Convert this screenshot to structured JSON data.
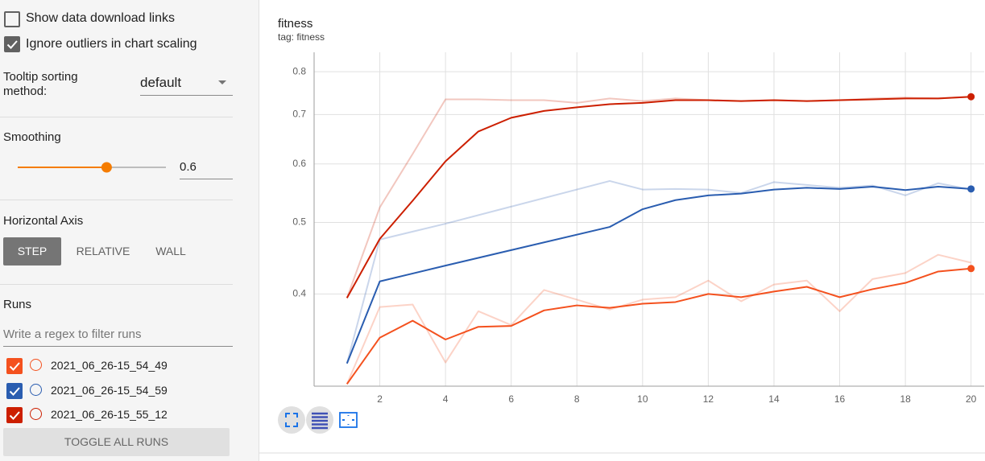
{
  "sidebar": {
    "show_download_links": {
      "label": "Show data download links",
      "checked": false
    },
    "ignore_outliers": {
      "label": "Ignore outliers in chart scaling",
      "checked": true
    },
    "tooltip_sorting": {
      "label": "Tooltip sorting method:",
      "value": "default"
    },
    "smoothing": {
      "label": "Smoothing",
      "value": 0.6,
      "range": [
        0,
        1
      ]
    },
    "horizontal_axis": {
      "label": "Horizontal Axis",
      "options": [
        "STEP",
        "RELATIVE",
        "WALL"
      ],
      "selected": 0
    },
    "runs": {
      "label": "Runs",
      "filter_placeholder": "Write a regex to filter runs",
      "toggle_button": "TOGGLE ALL RUNS"
    }
  },
  "chart_data": {
    "type": "line",
    "title": "fitness",
    "subtitle": "tag: fitness",
    "xlim": [
      0,
      20.4
    ],
    "xticks": [
      2,
      4,
      6,
      8,
      10,
      12,
      14,
      16,
      18,
      20
    ],
    "ylim": [
      0.3,
      0.85
    ],
    "yticks": [
      0.4,
      0.5,
      0.6,
      0.7,
      0.8
    ],
    "yscale": "log",
    "grid": true,
    "raw_opacity": 0.25,
    "series": [
      {
        "name": "2021_06_26-15_54_49",
        "color": "#f4511e",
        "x": [
          1,
          2,
          3,
          4,
          5,
          6,
          7,
          8,
          9,
          10,
          11,
          12,
          13,
          14,
          15,
          16,
          17,
          18,
          19,
          20
        ],
        "values": [
          0.302,
          0.349,
          0.368,
          0.347,
          0.361,
          0.362,
          0.38,
          0.386,
          0.383,
          0.388,
          0.39,
          0.4,
          0.396,
          0.403,
          0.409,
          0.396,
          0.406,
          0.414,
          0.429,
          0.433
        ],
        "raw_values": [
          0.302,
          0.384,
          0.387,
          0.323,
          0.379,
          0.363,
          0.405,
          0.393,
          0.381,
          0.393,
          0.396,
          0.417,
          0.391,
          0.412,
          0.417,
          0.379,
          0.419,
          0.427,
          0.452,
          0.441
        ]
      },
      {
        "name": "2021_06_26-15_54_59",
        "color": "#2a5db0",
        "x": [
          1,
          2,
          4,
          9,
          10,
          11,
          12,
          13,
          14,
          15,
          16,
          17,
          18,
          19,
          20
        ],
        "values": [
          0.322,
          0.416,
          0.437,
          0.493,
          0.521,
          0.536,
          0.544,
          0.547,
          0.554,
          0.557,
          0.555,
          0.559,
          0.553,
          0.559,
          0.555
        ],
        "raw_values": [
          0.322,
          0.474,
          0.498,
          0.569,
          0.554,
          0.555,
          0.554,
          0.548,
          0.567,
          0.562,
          0.557,
          0.561,
          0.544,
          0.565,
          0.554
        ]
      },
      {
        "name": "2021_06_26-15_55_12",
        "color": "#cc1f00",
        "x": [
          1,
          2,
          3,
          4,
          5,
          6,
          7,
          8,
          9,
          10,
          11,
          12,
          13,
          14,
          15,
          16,
          17,
          18,
          19,
          20
        ],
        "values": [
          0.395,
          0.475,
          0.535,
          0.605,
          0.664,
          0.693,
          0.708,
          0.716,
          0.723,
          0.726,
          0.732,
          0.732,
          0.73,
          0.732,
          0.73,
          0.732,
          0.734,
          0.736,
          0.736,
          0.74
        ],
        "raw_values": [
          0.395,
          0.524,
          0.619,
          0.734,
          0.734,
          0.732,
          0.732,
          0.726,
          0.736,
          0.73,
          0.736,
          0.732,
          0.73,
          0.732,
          0.73,
          0.732,
          0.736,
          0.738,
          0.736,
          0.74
        ]
      }
    ]
  }
}
